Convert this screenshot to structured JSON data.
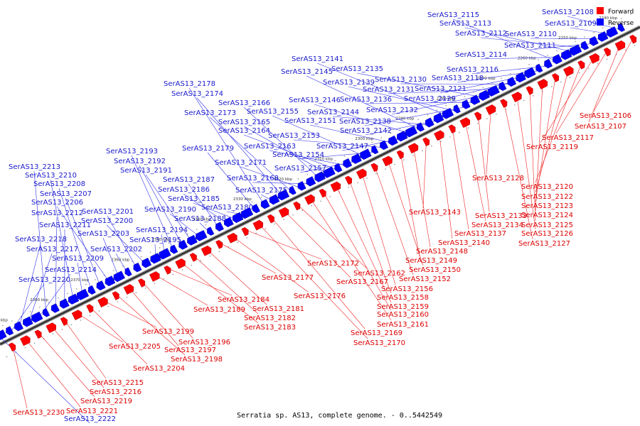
{
  "caption": "Serratia sp. AS13, complete genome. - 0..5442549",
  "legend": [
    {
      "label": "Forward",
      "color": "#ff0000"
    },
    {
      "label": "Reverse",
      "color": "#0000ff"
    }
  ],
  "colors": {
    "forward": "#ff0000",
    "reverse": "#0000ff",
    "forward_line": "#ee2222",
    "reverse_line": "#3333ee",
    "backbone": "#333333"
  },
  "ticks": [
    "2240 kbp",
    "2250 kbp",
    "2260 kbp",
    "2270 kbp",
    "2280 kbp",
    "2290 kbp",
    "2300 kbp",
    "2310 kbp",
    "2320 kbp",
    "2330 kbp",
    "2340 kbp",
    "2350 kbp",
    "2360 kbp",
    "2370 kbp",
    "2380 kbp",
    "2390 kbp"
  ],
  "reverse_labels": [
    "SerAS13_2108",
    "SerAS13_2109",
    "SerAS13_2110",
    "SerAS13_2111",
    "SerAS13_2112",
    "SerAS13_2113",
    "SerAS13_2114",
    "SerAS13_2115",
    "SerAS13_2116",
    "SerAS13_2118",
    "SerAS13_2121",
    "SerAS13_2129",
    "SerAS13_2130",
    "SerAS13_2131",
    "SerAS13_2132",
    "SerAS13_2135",
    "SerAS13_2136",
    "SerAS13_2138",
    "SerAS13_2139",
    "SerAS13_2141",
    "SerAS13_2142",
    "SerAS13_2144",
    "SerAS13_2145",
    "SerAS13_2146",
    "SerAS13_2147",
    "SerAS13_2151",
    "SerAS13_2153",
    "SerAS13_2154",
    "SerAS13_2155",
    "SerAS13_2157",
    "SerAS13_2163",
    "SerAS13_2164",
    "SerAS13_2165",
    "SerAS13_2166",
    "SerAS13_2168",
    "SerAS13_2171",
    "SerAS13_2173",
    "SerAS13_2174",
    "SerAS13_2175",
    "SerAS13_2178",
    "SerAS13_2179",
    "SerAS13_2180",
    "SerAS13_2185",
    "SerAS13_2186",
    "SerAS13_2187",
    "SerAS13_2188",
    "SerAS13_2190",
    "SerAS13_2191",
    "SerAS13_2192",
    "SerAS13_2193",
    "SerAS13_2194",
    "SerAS13_2195",
    "SerAS13_2200",
    "SerAS13_2201",
    "SerAS13_2202",
    "SerAS13_2203",
    "SerAS13_2206",
    "SerAS13_2207",
    "SerAS13_2208",
    "SerAS13_2209",
    "SerAS13_2210",
    "SerAS13_2211",
    "SerAS13_2212",
    "SerAS13_2213",
    "SerAS13_2214",
    "SerAS13_2217",
    "SerAS13_2218",
    "SerAS13_2220",
    "SerAS13_2222"
  ],
  "forward_labels": [
    "SerAS13_2106",
    "SerAS13_2107",
    "SerAS13_2117",
    "SerAS13_2119",
    "SerAS13_2120",
    "SerAS13_2122",
    "SerAS13_2123",
    "SerAS13_2124",
    "SerAS13_2125",
    "SerAS13_2126",
    "SerAS13_2127",
    "SerAS13_2128",
    "SerAS13_2133",
    "SerAS13_2134",
    "SerAS13_2137",
    "SerAS13_2140",
    "SerAS13_2143",
    "SerAS13_2148",
    "SerAS13_2149",
    "SerAS13_2150",
    "SerAS13_2152",
    "SerAS13_2156",
    "SerAS13_2158",
    "SerAS13_2159",
    "SerAS13_2160",
    "SerAS13_2161",
    "SerAS13_2162",
    "SerAS13_2167",
    "SerAS13_2169",
    "SerAS13_2170",
    "SerAS13_2172",
    "SerAS13_2176",
    "SerAS13_2177",
    "SerAS13_2181",
    "SerAS13_2182",
    "SerAS13_2183",
    "SerAS13_2184",
    "SerAS13_2189",
    "SerAS13_2196",
    "SerAS13_2197",
    "SerAS13_2198",
    "SerAS13_2199",
    "SerAS13_2204",
    "SerAS13_2205",
    "SerAS13_2215",
    "SerAS13_2216",
    "SerAS13_2219",
    "SerAS13_2221",
    "SerAS13_2230"
  ]
}
